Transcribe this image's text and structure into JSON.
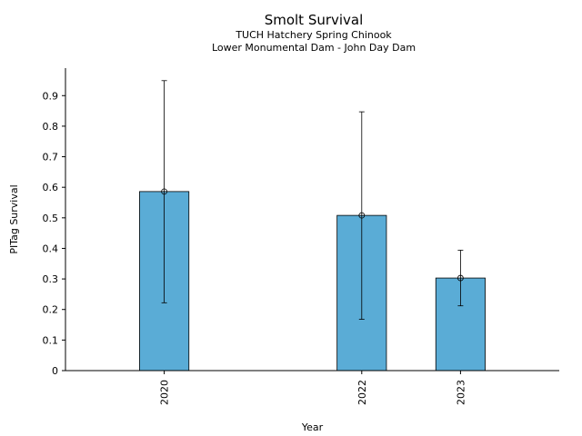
{
  "chart_data": {
    "type": "bar",
    "title": "Smolt Survival",
    "subtitle_lines": [
      "TUCH Hatchery Spring Chinook",
      "Lower Monumental Dam - John Day Dam"
    ],
    "xlabel": "Year",
    "ylabel": "PITag Survival",
    "x_range": [
      2019,
      2024
    ],
    "ylim": [
      0,
      0.99
    ],
    "y_ticks": [
      0,
      0.1,
      0.2,
      0.3,
      0.4,
      0.5,
      0.6,
      0.7,
      0.8,
      0.9
    ],
    "y_tick_labels": [
      "0",
      "0.1",
      "0.2",
      "0.3",
      "0.4",
      "0.5",
      "0.6",
      "0.7",
      "0.8",
      "0.9"
    ],
    "bar_color": "#5aacd6",
    "grid": false,
    "categories": [
      "2020",
      "2022",
      "2023"
    ],
    "values": [
      0.586,
      0.508,
      0.303
    ],
    "error_lower": [
      0.222,
      0.168,
      0.212
    ],
    "error_upper": [
      0.949,
      0.847,
      0.394
    ]
  }
}
